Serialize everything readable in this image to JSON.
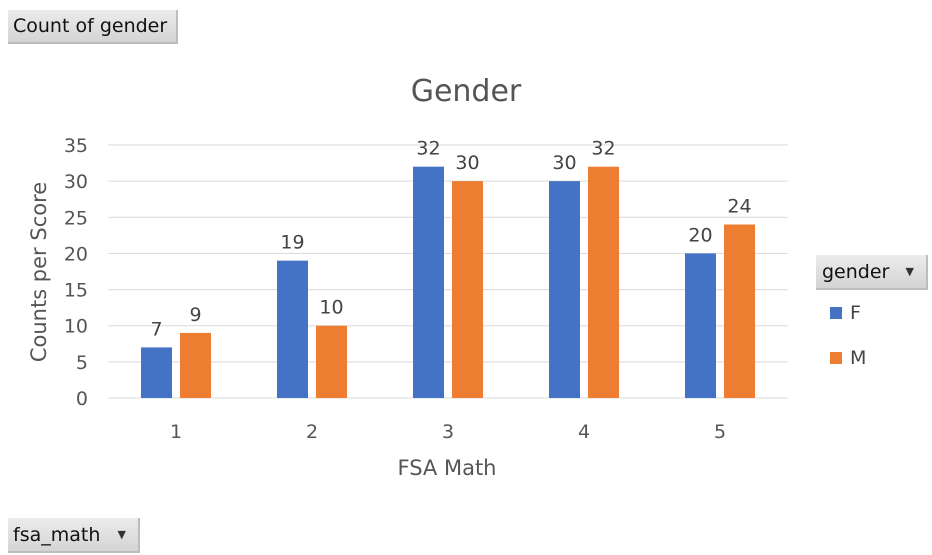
{
  "values_button": {
    "label": "Count of gender"
  },
  "axis_button": {
    "label": "fsa_math",
    "icon": "dropdown-arrow-icon"
  },
  "legend_button": {
    "label": "gender",
    "icon": "dropdown-arrow-icon"
  },
  "chart_data": {
    "type": "bar",
    "title": "Gender",
    "xlabel": "FSA Math",
    "ylabel": "Counts per Score",
    "categories": [
      "1",
      "2",
      "3",
      "4",
      "5"
    ],
    "series": [
      {
        "name": "F",
        "values": [
          7,
          19,
          32,
          30,
          20
        ],
        "color": "#4472c4"
      },
      {
        "name": "M",
        "values": [
          9,
          10,
          30,
          32,
          24
        ],
        "color": "#ed7d31"
      }
    ],
    "ylim": [
      0,
      35
    ],
    "yticks": [
      0,
      5,
      10,
      15,
      20,
      25,
      30,
      35
    ],
    "grid": true,
    "legend_position": "right",
    "data_labels": true
  }
}
